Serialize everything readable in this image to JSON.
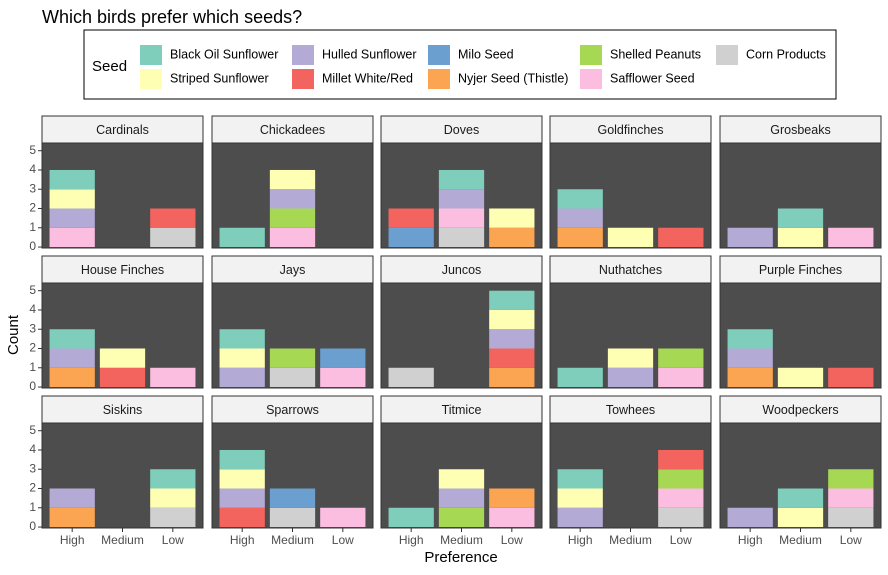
{
  "chart_data": {
    "type": "bar",
    "stacked": true,
    "title": "Which birds prefer which seeds?",
    "x_label": "Preference",
    "y_label": "Count",
    "legend_title": "Seed",
    "categories": [
      "High",
      "Medium",
      "Low"
    ],
    "ylim": [
      -0.05,
      5.4
    ],
    "yticks": [
      0,
      1,
      2,
      3,
      4,
      5
    ],
    "series": [
      {
        "name": "Black Oil Sunflower",
        "color": "#7fcdbb"
      },
      {
        "name": "Striped Sunflower",
        "color": "#ffffb3"
      },
      {
        "name": "Hulled Sunflower",
        "color": "#b3abd6"
      },
      {
        "name": "Millet White/Red",
        "color": "#f4645f"
      },
      {
        "name": "Milo Seed",
        "color": "#6b9fcf"
      },
      {
        "name": "Nyjer Seed (Thistle)",
        "color": "#fba552"
      },
      {
        "name": "Shelled Peanuts",
        "color": "#a6d854"
      },
      {
        "name": "Safflower Seed",
        "color": "#fbbde0"
      },
      {
        "name": "Corn Products",
        "color": "#d0d0d0"
      }
    ],
    "facets": [
      {
        "title": "Cardinals",
        "counts": [
          [
            1,
            0,
            0
          ],
          [
            1,
            0,
            0
          ],
          [
            1,
            0,
            0
          ],
          [
            0,
            0,
            1
          ],
          [
            0,
            0,
            0
          ],
          [
            0,
            0,
            0
          ],
          [
            0,
            0,
            0
          ],
          [
            1,
            0,
            0
          ],
          [
            0,
            0,
            1
          ]
        ]
      },
      {
        "title": "Chickadees",
        "counts": [
          [
            1,
            0,
            0
          ],
          [
            0,
            1,
            0
          ],
          [
            0,
            1,
            0
          ],
          [
            0,
            0,
            0
          ],
          [
            0,
            0,
            0
          ],
          [
            0,
            0,
            0
          ],
          [
            0,
            1,
            0
          ],
          [
            0,
            1,
            0
          ],
          [
            0,
            0,
            0
          ]
        ]
      },
      {
        "title": "Doves",
        "counts": [
          [
            0,
            1,
            0
          ],
          [
            0,
            0,
            1
          ],
          [
            0,
            1,
            0
          ],
          [
            1,
            0,
            0
          ],
          [
            1,
            0,
            0
          ],
          [
            0,
            0,
            1
          ],
          [
            0,
            0,
            0
          ],
          [
            0,
            1,
            0
          ],
          [
            0,
            1,
            0
          ]
        ]
      },
      {
        "title": "Goldfinches",
        "counts": [
          [
            1,
            0,
            0
          ],
          [
            0,
            1,
            0
          ],
          [
            1,
            0,
            0
          ],
          [
            0,
            0,
            1
          ],
          [
            0,
            0,
            0
          ],
          [
            1,
            0,
            0
          ],
          [
            0,
            0,
            0
          ],
          [
            0,
            0,
            0
          ],
          [
            0,
            0,
            0
          ]
        ]
      },
      {
        "title": "Grosbeaks",
        "counts": [
          [
            0,
            1,
            0
          ],
          [
            0,
            1,
            0
          ],
          [
            1,
            0,
            0
          ],
          [
            0,
            0,
            0
          ],
          [
            0,
            0,
            0
          ],
          [
            0,
            0,
            0
          ],
          [
            0,
            0,
            0
          ],
          [
            0,
            0,
            1
          ],
          [
            0,
            0,
            0
          ]
        ]
      },
      {
        "title": "House Finches",
        "counts": [
          [
            1,
            0,
            0
          ],
          [
            0,
            1,
            0
          ],
          [
            1,
            0,
            0
          ],
          [
            0,
            1,
            0
          ],
          [
            0,
            0,
            0
          ],
          [
            1,
            0,
            0
          ],
          [
            0,
            0,
            0
          ],
          [
            0,
            0,
            1
          ],
          [
            0,
            0,
            0
          ]
        ]
      },
      {
        "title": "Jays",
        "counts": [
          [
            1,
            0,
            0
          ],
          [
            1,
            0,
            0
          ],
          [
            1,
            0,
            0
          ],
          [
            0,
            0,
            0
          ],
          [
            0,
            0,
            1
          ],
          [
            0,
            0,
            0
          ],
          [
            0,
            1,
            0
          ],
          [
            0,
            0,
            1
          ],
          [
            0,
            1,
            0
          ]
        ]
      },
      {
        "title": "Juncos",
        "counts": [
          [
            0,
            0,
            1
          ],
          [
            0,
            0,
            1
          ],
          [
            0,
            0,
            1
          ],
          [
            0,
            0,
            1
          ],
          [
            0,
            0,
            0
          ],
          [
            0,
            0,
            1
          ],
          [
            0,
            0,
            0
          ],
          [
            0,
            0,
            0
          ],
          [
            1,
            0,
            0
          ]
        ]
      },
      {
        "title": "Nuthatches",
        "counts": [
          [
            1,
            0,
            0
          ],
          [
            0,
            1,
            0
          ],
          [
            0,
            1,
            0
          ],
          [
            0,
            0,
            0
          ],
          [
            0,
            0,
            0
          ],
          [
            0,
            0,
            0
          ],
          [
            0,
            0,
            1
          ],
          [
            0,
            0,
            1
          ],
          [
            0,
            0,
            0
          ]
        ]
      },
      {
        "title": "Purple Finches",
        "counts": [
          [
            1,
            0,
            0
          ],
          [
            0,
            1,
            0
          ],
          [
            1,
            0,
            0
          ],
          [
            0,
            0,
            1
          ],
          [
            0,
            0,
            0
          ],
          [
            1,
            0,
            0
          ],
          [
            0,
            0,
            0
          ],
          [
            0,
            0,
            0
          ],
          [
            0,
            0,
            0
          ]
        ]
      },
      {
        "title": "Siskins",
        "counts": [
          [
            0,
            0,
            1
          ],
          [
            0,
            0,
            1
          ],
          [
            1,
            0,
            0
          ],
          [
            0,
            0,
            0
          ],
          [
            0,
            0,
            0
          ],
          [
            1,
            0,
            0
          ],
          [
            0,
            0,
            0
          ],
          [
            0,
            0,
            0
          ],
          [
            0,
            0,
            1
          ]
        ]
      },
      {
        "title": "Sparrows",
        "counts": [
          [
            1,
            0,
            0
          ],
          [
            1,
            0,
            0
          ],
          [
            1,
            0,
            0
          ],
          [
            1,
            0,
            0
          ],
          [
            0,
            1,
            0
          ],
          [
            0,
            0,
            0
          ],
          [
            0,
            0,
            0
          ],
          [
            0,
            0,
            1
          ],
          [
            0,
            1,
            0
          ]
        ]
      },
      {
        "title": "Titmice",
        "counts": [
          [
            1,
            0,
            0
          ],
          [
            0,
            1,
            0
          ],
          [
            0,
            1,
            0
          ],
          [
            0,
            0,
            0
          ],
          [
            0,
            0,
            0
          ],
          [
            0,
            0,
            1
          ],
          [
            0,
            1,
            0
          ],
          [
            0,
            0,
            1
          ],
          [
            0,
            0,
            0
          ]
        ]
      },
      {
        "title": "Towhees",
        "counts": [
          [
            1,
            0,
            0
          ],
          [
            1,
            0,
            0
          ],
          [
            1,
            0,
            0
          ],
          [
            0,
            0,
            1
          ],
          [
            0,
            0,
            0
          ],
          [
            0,
            0,
            0
          ],
          [
            0,
            0,
            1
          ],
          [
            0,
            0,
            1
          ],
          [
            0,
            0,
            1
          ]
        ]
      },
      {
        "title": "Woodpeckers",
        "counts": [
          [
            0,
            1,
            0
          ],
          [
            0,
            1,
            0
          ],
          [
            1,
            0,
            0
          ],
          [
            0,
            0,
            0
          ],
          [
            0,
            0,
            0
          ],
          [
            0,
            0,
            0
          ],
          [
            0,
            0,
            1
          ],
          [
            0,
            0,
            1
          ],
          [
            0,
            0,
            1
          ]
        ]
      }
    ]
  }
}
